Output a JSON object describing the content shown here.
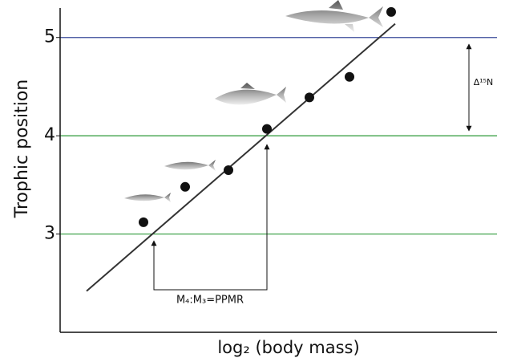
{
  "chart_data": {
    "type": "scatter",
    "x_label": "log₂ (body mass)",
    "y_label": "Trophic position",
    "x": [
      104,
      156,
      210,
      258,
      311,
      361,
      413
    ],
    "values": [
      3.12,
      3.48,
      3.65,
      4.07,
      4.39,
      4.6,
      5.26
    ],
    "color": "#111111",
    "fit_line": {
      "x": [
        33,
        418
      ],
      "values": [
        2.42,
        5.14
      ],
      "color": "#333333"
    },
    "xlim": [
      0,
      545
    ],
    "ylim": [
      2.0,
      5.3
    ],
    "yticks": [
      3,
      4,
      5
    ],
    "grid": true,
    "grid_colors": [
      "#2e9a3a",
      "#2e9a3a",
      "#3a4a9a"
    ],
    "annotations": [
      "Δ¹⁵N",
      "M₄:M₃=PPMR"
    ]
  }
}
